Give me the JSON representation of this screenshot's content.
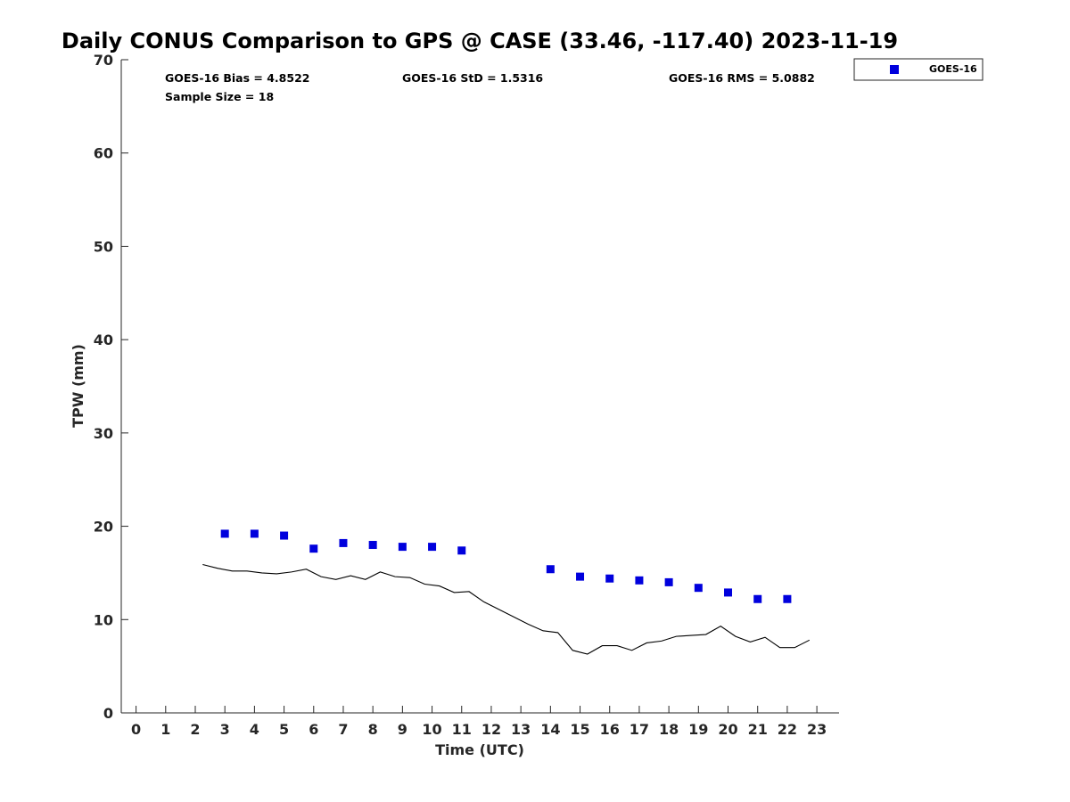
{
  "chart_data": {
    "type": "scatter",
    "title": "Daily CONUS Comparison to GPS @ CASE (33.46, -117.40) 2023-11-19",
    "xlabel": "Time (UTC)",
    "ylabel": "TPW (mm)",
    "xlim": [
      -0.5,
      23.75
    ],
    "ylim": [
      0,
      70
    ],
    "xticks": [
      0,
      1,
      2,
      3,
      4,
      5,
      6,
      7,
      8,
      9,
      10,
      11,
      12,
      13,
      14,
      15,
      16,
      17,
      18,
      19,
      20,
      21,
      22,
      23
    ],
    "yticks": [
      0,
      10,
      20,
      30,
      40,
      50,
      60,
      70
    ],
    "grid": false,
    "legend_position": "top-right",
    "stats": {
      "bias": "GOES-16 Bias = 4.8522",
      "std": "GOES-16 StD = 1.5316",
      "rms": "GOES-16 RMS = 5.0882",
      "sample": "Sample Size = 18"
    },
    "series": [
      {
        "name": "GOES-16",
        "kind": "scatter",
        "marker": "square",
        "color": "#0000dd",
        "x": [
          3,
          4,
          5,
          6,
          7,
          8,
          9,
          10,
          11,
          14,
          15,
          16,
          17,
          18,
          19,
          20,
          21,
          22
        ],
        "y": [
          19.2,
          19.2,
          19.0,
          17.6,
          18.2,
          18.0,
          17.8,
          17.8,
          17.4,
          15.4,
          14.6,
          14.4,
          14.2,
          14.0,
          13.4,
          12.9,
          12.2,
          12.2
        ]
      },
      {
        "kind": "line",
        "color": "#000000",
        "x": [
          2.25,
          2.75,
          3.25,
          3.75,
          4.25,
          4.75,
          5.25,
          5.75,
          6.25,
          6.75,
          7.25,
          7.75,
          8.25,
          8.75,
          9.25,
          9.75,
          10.25,
          10.75,
          11.25,
          11.75,
          12.25,
          12.75,
          13.25,
          13.75,
          14.25,
          14.75,
          15.25,
          15.75,
          16.25,
          16.75,
          17.25,
          17.75,
          18.25,
          18.75,
          19.25,
          19.75,
          20.25,
          20.75,
          21.25,
          21.75,
          22.25,
          22.75
        ],
        "y": [
          15.9,
          15.5,
          15.2,
          15.2,
          15.0,
          14.9,
          15.1,
          15.4,
          14.6,
          14.3,
          14.7,
          14.3,
          15.1,
          14.6,
          14.5,
          13.8,
          13.6,
          12.9,
          13.0,
          11.9,
          11.1,
          10.3,
          9.5,
          8.8,
          8.6,
          6.7,
          6.3,
          7.2,
          7.2,
          6.7,
          7.5,
          7.7,
          8.2,
          8.3,
          8.4,
          9.3,
          8.2,
          7.6,
          8.1,
          7.0,
          7.0,
          7.8
        ]
      }
    ]
  }
}
